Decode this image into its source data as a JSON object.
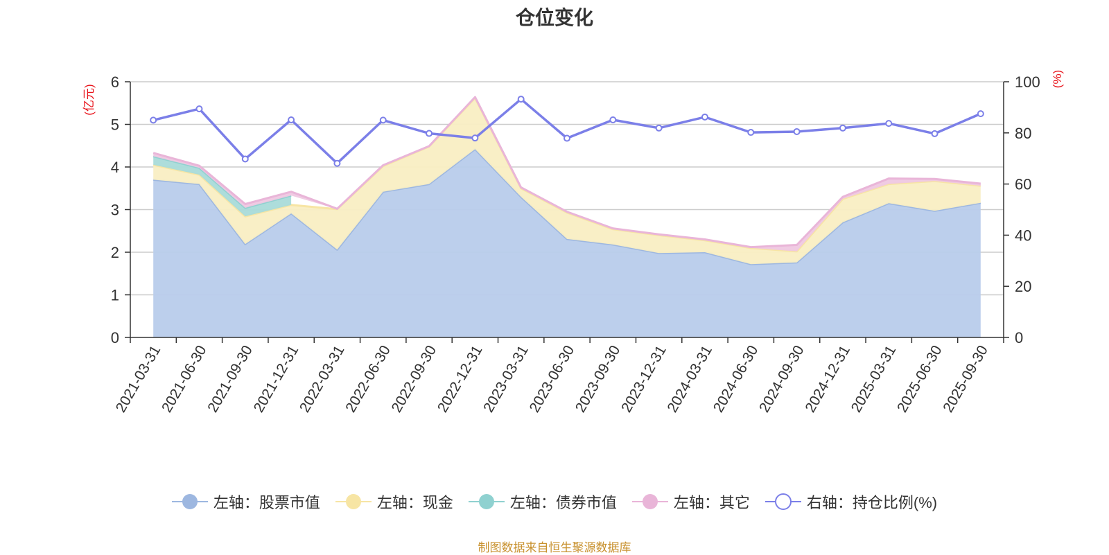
{
  "chart_data": {
    "type": "area",
    "title": "仓位变化",
    "left_axis_label": "(亿元)",
    "right_axis_label": "(%)",
    "left_ylim": [
      0,
      6
    ],
    "left_ticks": [
      0,
      1,
      2,
      3,
      4,
      5,
      6
    ],
    "right_ylim": [
      0,
      100
    ],
    "right_ticks": [
      0,
      20,
      40,
      60,
      80,
      100
    ],
    "categories": [
      "2021-03-31",
      "2021-06-30",
      "2021-09-30",
      "2021-12-31",
      "2022-03-31",
      "2022-06-30",
      "2022-09-30",
      "2022-12-31",
      "2023-03-31",
      "2023-06-30",
      "2023-09-30",
      "2023-12-31",
      "2024-03-31",
      "2024-06-30",
      "2024-09-30",
      "2024-12-31",
      "2025-03-31",
      "2025-06-30",
      "2025-09-30"
    ],
    "stacked_series": [
      {
        "name": "左轴：股票市值",
        "color": "#9db7e0",
        "fill": "#b8cceb",
        "values": [
          3.7,
          3.6,
          2.19,
          2.91,
          2.06,
          3.42,
          3.6,
          4.42,
          3.3,
          2.31,
          2.18,
          1.98,
          2.0,
          1.72,
          1.76,
          2.7,
          3.15,
          2.97,
          3.16
        ]
      },
      {
        "name": "左轴：现金",
        "color": "#f7e5a4",
        "fill": "#f9eec3",
        "values": [
          0.35,
          0.22,
          0.65,
          0.2,
          0.95,
          0.6,
          0.88,
          1.2,
          0.2,
          0.62,
          0.36,
          0.42,
          0.28,
          0.38,
          0.26,
          0.55,
          0.45,
          0.7,
          0.4
        ]
      },
      {
        "name": "左轴：债券市值",
        "color": "#8fd1d0",
        "fill": "#a9dbd9",
        "values": [
          0.2,
          0.16,
          0.2,
          0.22,
          null,
          null,
          null,
          null,
          null,
          null,
          null,
          null,
          null,
          null,
          null,
          null,
          null,
          null,
          null
        ]
      },
      {
        "name": "左轴：其它",
        "color": "#e9b5d8",
        "fill": "#efc8e1",
        "values": [
          0.08,
          0.05,
          0.09,
          0.09,
          0.01,
          0.02,
          0.01,
          0.02,
          0.02,
          0.02,
          0.02,
          0.02,
          0.02,
          0.02,
          0.15,
          0.05,
          0.13,
          0.05,
          0.05
        ]
      }
    ],
    "line_series": {
      "name": "右轴：持仓比例(%)",
      "color": "#7b7fe8",
      "values": [
        85.0,
        89.4,
        69.8,
        85.1,
        68.1,
        85.0,
        79.8,
        78.0,
        93.2,
        77.9,
        85.1,
        81.9,
        86.2,
        80.2,
        80.5,
        81.9,
        83.7,
        79.7,
        87.5
      ]
    },
    "legend_position": "bottom"
  },
  "legend": [
    {
      "label": "左轴：股票市值",
      "color": "#9db7e0",
      "kind": "dot"
    },
    {
      "label": "左轴：现金",
      "color": "#f7e5a4",
      "kind": "dot"
    },
    {
      "label": "左轴：债券市值",
      "color": "#8fd1d0",
      "kind": "dot"
    },
    {
      "label": "左轴：其它",
      "color": "#e9b5d8",
      "kind": "dot"
    },
    {
      "label": "右轴：持仓比例(%)",
      "color": "#7b7fe8",
      "kind": "ring"
    }
  ],
  "source": "制图数据来自恒生聚源数据库"
}
